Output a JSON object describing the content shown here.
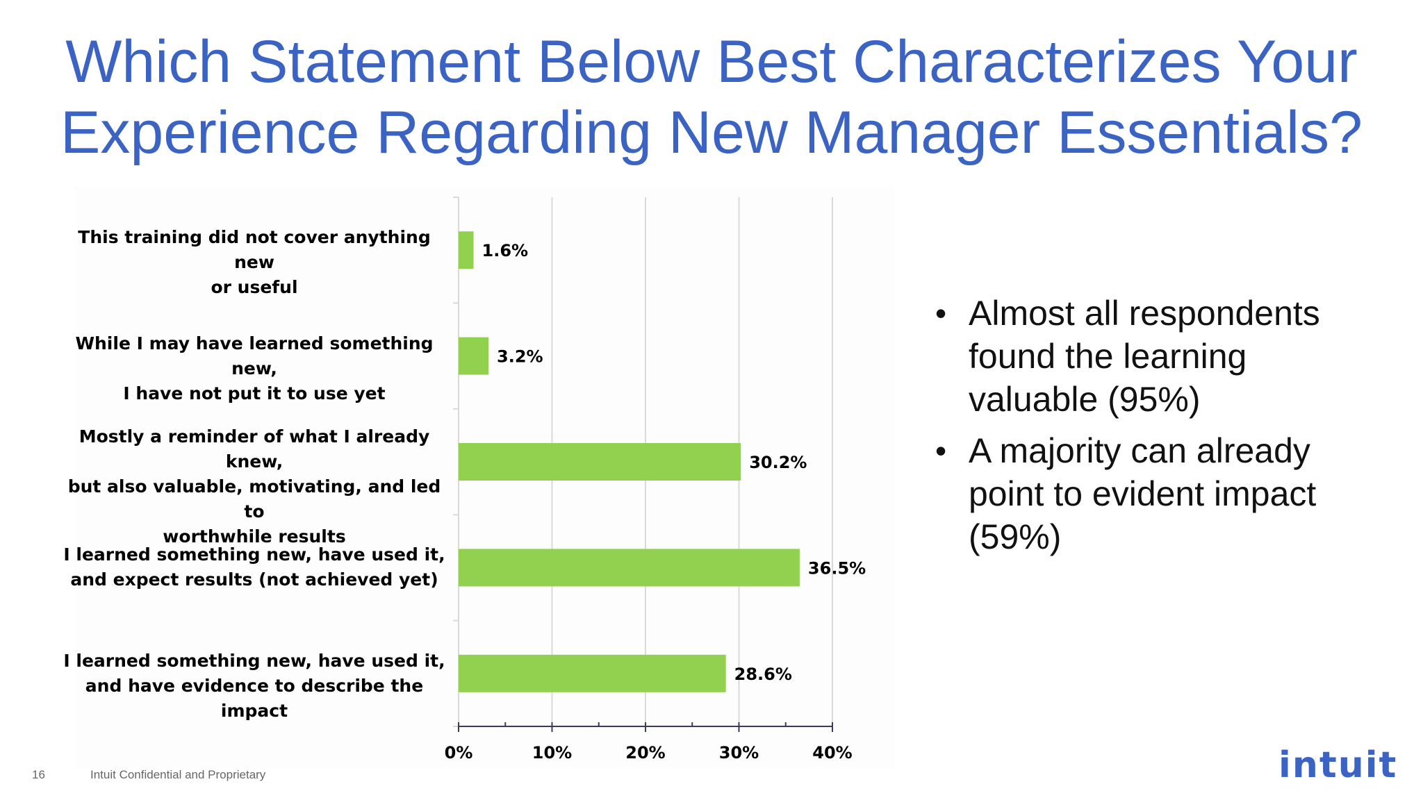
{
  "slide": {
    "title_lines": [
      "Which Statement Below Best Characterizes Your",
      "Experience Regarding New Manager Essentials?"
    ],
    "bullets": [
      "Almost all respondents found the learning valuable (95%)",
      "A majority can already point to evident impact (59%)"
    ],
    "footer_page": "16",
    "footer_text": "Intuit Confidential and Proprietary",
    "logo_text": "intuit"
  },
  "colors": {
    "title": "#3b63c4",
    "bar": "#92d050",
    "grid": "#d9d9d9",
    "axis": "#3a3a5a"
  },
  "chart_data": {
    "type": "bar",
    "orientation": "horizontal",
    "categories": [
      "This training did not cover anything new or useful",
      "While I may have learned something new, I have not put it to use yet",
      "Mostly a reminder of what I already knew, but also valuable, motivating, and led to worthwhile results",
      "I learned something new, have used it, and expect results (not achieved yet)",
      "I learned something new, have used it, and have evidence to describe the impact"
    ],
    "category_lines": [
      [
        "This training did not cover anything new",
        "or useful"
      ],
      [
        "While I may have learned something new,",
        "I have not put it to use yet"
      ],
      [
        "Mostly a reminder of what I already knew,",
        "but also valuable, motivating, and led to",
        "worthwhile results"
      ],
      [
        "I learned something new, have used it,",
        "and expect results (not achieved yet)"
      ],
      [
        "I learned something new, have used it,",
        "and have evidence to describe the impact"
      ]
    ],
    "values": [
      1.6,
      3.2,
      30.2,
      36.5,
      28.6
    ],
    "data_labels": [
      "1.6%",
      "3.2%",
      "30.2%",
      "36.5%",
      "28.6%"
    ],
    "xticks": [
      "0%",
      "10%",
      "20%",
      "30%",
      "40%"
    ],
    "xlim": [
      0,
      40
    ],
    "grid": true,
    "title": "",
    "xlabel": "",
    "ylabel": ""
  }
}
